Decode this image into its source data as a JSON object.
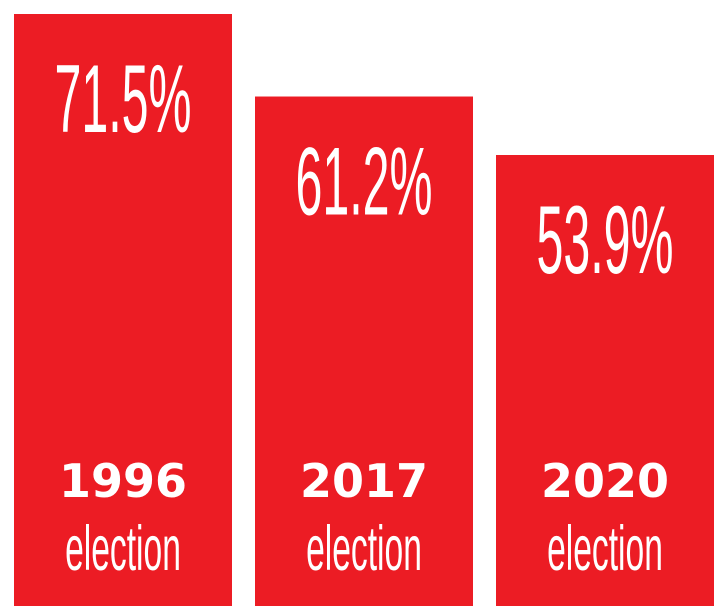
{
  "chart_data": {
    "type": "bar",
    "categories": [
      "1996",
      "2017",
      "2020"
    ],
    "category_sublabel": "election",
    "values": [
      71.5,
      61.2,
      53.9
    ],
    "value_labels": [
      "71.5%",
      "61.2%",
      "53.9%"
    ],
    "bar_color": "#ec1c24",
    "text_color": "#ffffff",
    "grid": false,
    "legend": "none"
  }
}
